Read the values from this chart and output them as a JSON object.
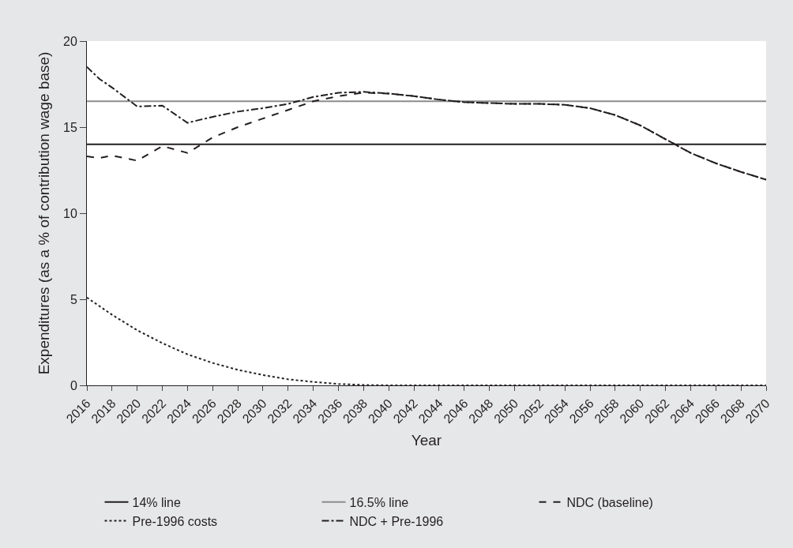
{
  "chart_data": {
    "type": "line",
    "xlabel": "Year",
    "ylabel": "Expenditures (as a % of contribution wage base)",
    "xlim": [
      2016,
      2070
    ],
    "xticks": [
      2016,
      2018,
      2020,
      2022,
      2024,
      2026,
      2028,
      2030,
      2032,
      2034,
      2036,
      2038,
      2040,
      2042,
      2044,
      2046,
      2048,
      2050,
      2052,
      2054,
      2056,
      2058,
      2060,
      2062,
      2064,
      2066,
      2068,
      2070
    ],
    "ylim": [
      0,
      20
    ],
    "yticks": [
      0,
      5,
      10,
      15,
      20
    ],
    "grid": false,
    "legend": "bottom",
    "marker": "none",
    "series": [
      {
        "name": "14% line",
        "color": "#231f20",
        "line_style": "solid",
        "x": [
          2016,
          2070
        ],
        "values": [
          14,
          14
        ]
      },
      {
        "name": "16.5% line",
        "color": "#8c8c8c",
        "line_style": "solid",
        "x": [
          2016,
          2070
        ],
        "values": [
          16.5,
          16.5
        ]
      },
      {
        "name": "NDC (baseline)",
        "color": "#231f20",
        "line_style": "dashed",
        "x": [
          2016,
          2017,
          2018,
          2020,
          2022,
          2024,
          2026,
          2028,
          2030,
          2032,
          2034,
          2036,
          2038,
          2040,
          2042,
          2044,
          2046,
          2048,
          2050,
          2052,
          2054,
          2056,
          2058,
          2060,
          2062,
          2064,
          2066,
          2068,
          2070
        ],
        "values": [
          13.3,
          13.2,
          13.35,
          13.05,
          13.9,
          13.5,
          14.4,
          15.0,
          15.5,
          16.0,
          16.5,
          16.8,
          17.0,
          16.95,
          16.8,
          16.6,
          16.45,
          16.4,
          16.35,
          16.35,
          16.3,
          16.1,
          15.7,
          15.1,
          14.3,
          13.5,
          12.9,
          12.4,
          11.95
        ]
      },
      {
        "name": "Pre-1996 costs",
        "color": "#231f20",
        "line_style": "dotted",
        "x": [
          2016,
          2018,
          2020,
          2022,
          2024,
          2026,
          2028,
          2030,
          2032,
          2034,
          2036,
          2038,
          2040,
          2070
        ],
        "values": [
          5.1,
          4.1,
          3.2,
          2.45,
          1.8,
          1.3,
          0.9,
          0.6,
          0.35,
          0.2,
          0.08,
          0.02,
          0,
          0
        ]
      },
      {
        "name": "NDC + Pre-1996",
        "color": "#231f20",
        "line_style": "dashdot",
        "x": [
          2016,
          2017,
          2018,
          2020,
          2022,
          2024,
          2026,
          2028,
          2030,
          2032,
          2034,
          2036,
          2038,
          2040,
          2042,
          2044,
          2046,
          2048,
          2050,
          2052,
          2054,
          2056,
          2058,
          2060,
          2062,
          2064,
          2066,
          2068,
          2070
        ],
        "values": [
          18.5,
          17.8,
          17.3,
          16.2,
          16.25,
          15.25,
          15.6,
          15.9,
          16.1,
          16.35,
          16.75,
          17.0,
          17.05,
          16.95,
          16.8,
          16.6,
          16.45,
          16.4,
          16.35,
          16.35,
          16.3,
          16.1,
          15.7,
          15.1,
          14.3,
          13.5,
          12.9,
          12.4,
          11.95
        ]
      }
    ]
  }
}
